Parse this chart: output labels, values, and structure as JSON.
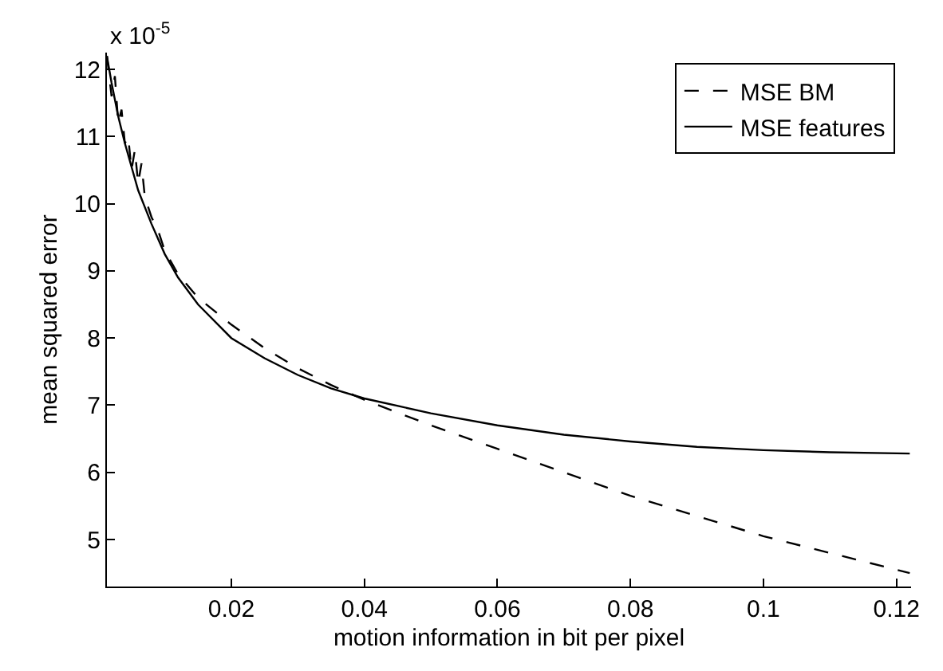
{
  "chart_data": {
    "type": "line",
    "xlabel": "motion information in bit per pixel",
    "ylabel": "mean squared error",
    "annotations": [
      "x 10$^{-5}$"
    ],
    "xlim": [
      0.0013,
      0.1222
    ],
    "xticks": [
      0.02,
      0.04,
      0.06,
      0.08,
      0.1,
      0.12
    ],
    "ylim": [
      4.3,
      12.25
    ],
    "yticks": [
      5,
      6,
      7,
      8,
      9,
      10,
      11,
      12
    ],
    "legend": "top right",
    "marker": "none",
    "series": [
      {
        "name": "MSE BM",
        "color": "#000000",
        "line_style": "dashed",
        "x": [
          0.0013,
          0.002,
          0.0025,
          0.003,
          0.0035,
          0.004,
          0.0045,
          0.005,
          0.0055,
          0.006,
          0.0065,
          0.007,
          0.008,
          0.009,
          0.01,
          0.012,
          0.015,
          0.02,
          0.025,
          0.03,
          0.035,
          0.04,
          0.05,
          0.06,
          0.07,
          0.08,
          0.09,
          0.1,
          0.11,
          0.122
        ],
        "values": [
          12.2,
          11.6,
          11.9,
          11.2,
          11.4,
          10.9,
          11.0,
          10.5,
          10.8,
          10.3,
          10.6,
          10.1,
          9.8,
          9.6,
          9.3,
          8.95,
          8.6,
          8.2,
          7.85,
          7.55,
          7.3,
          7.08,
          6.7,
          6.35,
          6.0,
          5.65,
          5.35,
          5.05,
          4.8,
          4.5
        ]
      },
      {
        "name": "MSE features",
        "color": "#000000",
        "line_style": "solid",
        "x": [
          0.0013,
          0.002,
          0.003,
          0.004,
          0.005,
          0.006,
          0.007,
          0.008,
          0.01,
          0.012,
          0.015,
          0.02,
          0.025,
          0.03,
          0.035,
          0.04,
          0.05,
          0.06,
          0.07,
          0.08,
          0.09,
          0.1,
          0.11,
          0.122
        ],
        "values": [
          12.2,
          11.8,
          11.3,
          10.9,
          10.55,
          10.2,
          9.95,
          9.7,
          9.25,
          8.9,
          8.5,
          8.0,
          7.7,
          7.45,
          7.25,
          7.1,
          6.88,
          6.7,
          6.56,
          6.46,
          6.38,
          6.33,
          6.3,
          6.28
        ]
      }
    ]
  }
}
